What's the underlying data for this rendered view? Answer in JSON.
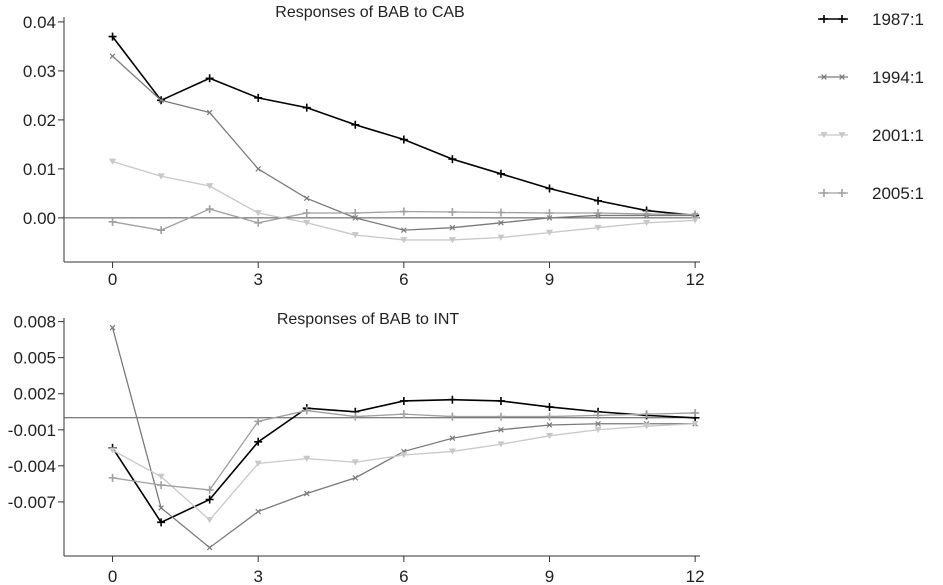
{
  "chart_data": [
    {
      "type": "line",
      "title": "Responses of BAB to CAB",
      "xlabel": "",
      "ylabel": "",
      "x": [
        0,
        1,
        2,
        3,
        4,
        5,
        6,
        7,
        8,
        9,
        10,
        11,
        12
      ],
      "xticks": [
        0,
        3,
        6,
        9,
        12
      ],
      "yticks": [
        0.04,
        0.03,
        0.02,
        0.01,
        0.0
      ],
      "ytick_labels": [
        "0.04",
        "0.03",
        "0.02",
        "0.01",
        "0.00"
      ],
      "xlim": [
        -1,
        12
      ],
      "ylim": [
        -0.009,
        0.041
      ],
      "zero_line": true,
      "series": [
        {
          "name": "1987:1",
          "color": "#000000",
          "marker": "plus",
          "values": [
            0.037,
            0.024,
            0.0285,
            0.0245,
            0.0225,
            0.019,
            0.016,
            0.012,
            0.009,
            0.006,
            0.0035,
            0.0015,
            0.0005
          ]
        },
        {
          "name": "1994:1",
          "color": "#7a7a7a",
          "marker": "small-x",
          "values": [
            0.033,
            0.024,
            0.0215,
            0.01,
            0.004,
            0.0,
            -0.0025,
            -0.002,
            -0.001,
            0.0,
            0.0005,
            0.0005,
            0.0005
          ]
        },
        {
          "name": "2001:1",
          "color": "#c8c8c8",
          "marker": "triangle-down",
          "values": [
            0.0115,
            0.0085,
            0.0065,
            0.001,
            -0.001,
            -0.0035,
            -0.0045,
            -0.0045,
            -0.004,
            -0.003,
            -0.002,
            -0.001,
            -0.0005
          ]
        },
        {
          "name": "2005:1",
          "color": "#a0a0a0",
          "marker": "plus",
          "values": [
            -0.0008,
            -0.0025,
            0.0018,
            -0.001,
            0.001,
            0.001,
            0.0013,
            0.0012,
            0.0011,
            0.001,
            0.001,
            0.0008,
            0.0007
          ]
        }
      ]
    },
    {
      "type": "line",
      "title": "Responses of BAB to INT",
      "xlabel": "",
      "ylabel": "",
      "x": [
        0,
        1,
        2,
        3,
        4,
        5,
        6,
        7,
        8,
        9,
        10,
        11,
        12
      ],
      "xticks": [
        0,
        3,
        6,
        9,
        12
      ],
      "yticks": [
        0.008,
        0.005,
        0.002,
        -0.001,
        -0.004,
        -0.007
      ],
      "ytick_labels": [
        "0.008",
        "0.005",
        "0.002",
        "-0.001",
        "-0.004",
        "-0.007"
      ],
      "xlim": [
        -1,
        12
      ],
      "ylim": [
        -0.0115,
        0.0083
      ],
      "zero_line": true,
      "series": [
        {
          "name": "1987:1",
          "color": "#000000",
          "marker": "plus",
          "values": [
            -0.0025,
            -0.0087,
            -0.0068,
            -0.002,
            0.0008,
            0.0005,
            0.0014,
            0.0015,
            0.0014,
            0.0009,
            0.0005,
            0.0002,
            0.0
          ]
        },
        {
          "name": "1994:1",
          "color": "#7a7a7a",
          "marker": "small-x",
          "values": [
            0.0075,
            -0.0075,
            -0.0108,
            -0.0078,
            -0.0063,
            -0.005,
            -0.0028,
            -0.0017,
            -0.001,
            -0.0006,
            -0.0005,
            -0.0005,
            -0.0005
          ]
        },
        {
          "name": "2001:1",
          "color": "#c8c8c8",
          "marker": "triangle-down",
          "values": [
            -0.0027,
            -0.0049,
            -0.0085,
            -0.0038,
            -0.0034,
            -0.0037,
            -0.0031,
            -0.0028,
            -0.0022,
            -0.0015,
            -0.001,
            -0.0007,
            -0.0005
          ]
        },
        {
          "name": "2005:1",
          "color": "#a0a0a0",
          "marker": "plus",
          "values": [
            -0.005,
            -0.0056,
            -0.006,
            -0.0003,
            0.0006,
            0.0001,
            0.0003,
            0.0001,
            0.0001,
            0.0001,
            0.0002,
            0.0003,
            0.0004
          ]
        }
      ]
    }
  ],
  "legend": {
    "placement": "right",
    "entries": [
      {
        "label": "1987:1",
        "color": "#000000",
        "marker": "plus"
      },
      {
        "label": "1994:1",
        "color": "#7a7a7a",
        "marker": "small-x"
      },
      {
        "label": "2001:1",
        "color": "#c8c8c8",
        "marker": "triangle-down"
      },
      {
        "label": "2005:1",
        "color": "#a0a0a0",
        "marker": "plus"
      }
    ]
  }
}
